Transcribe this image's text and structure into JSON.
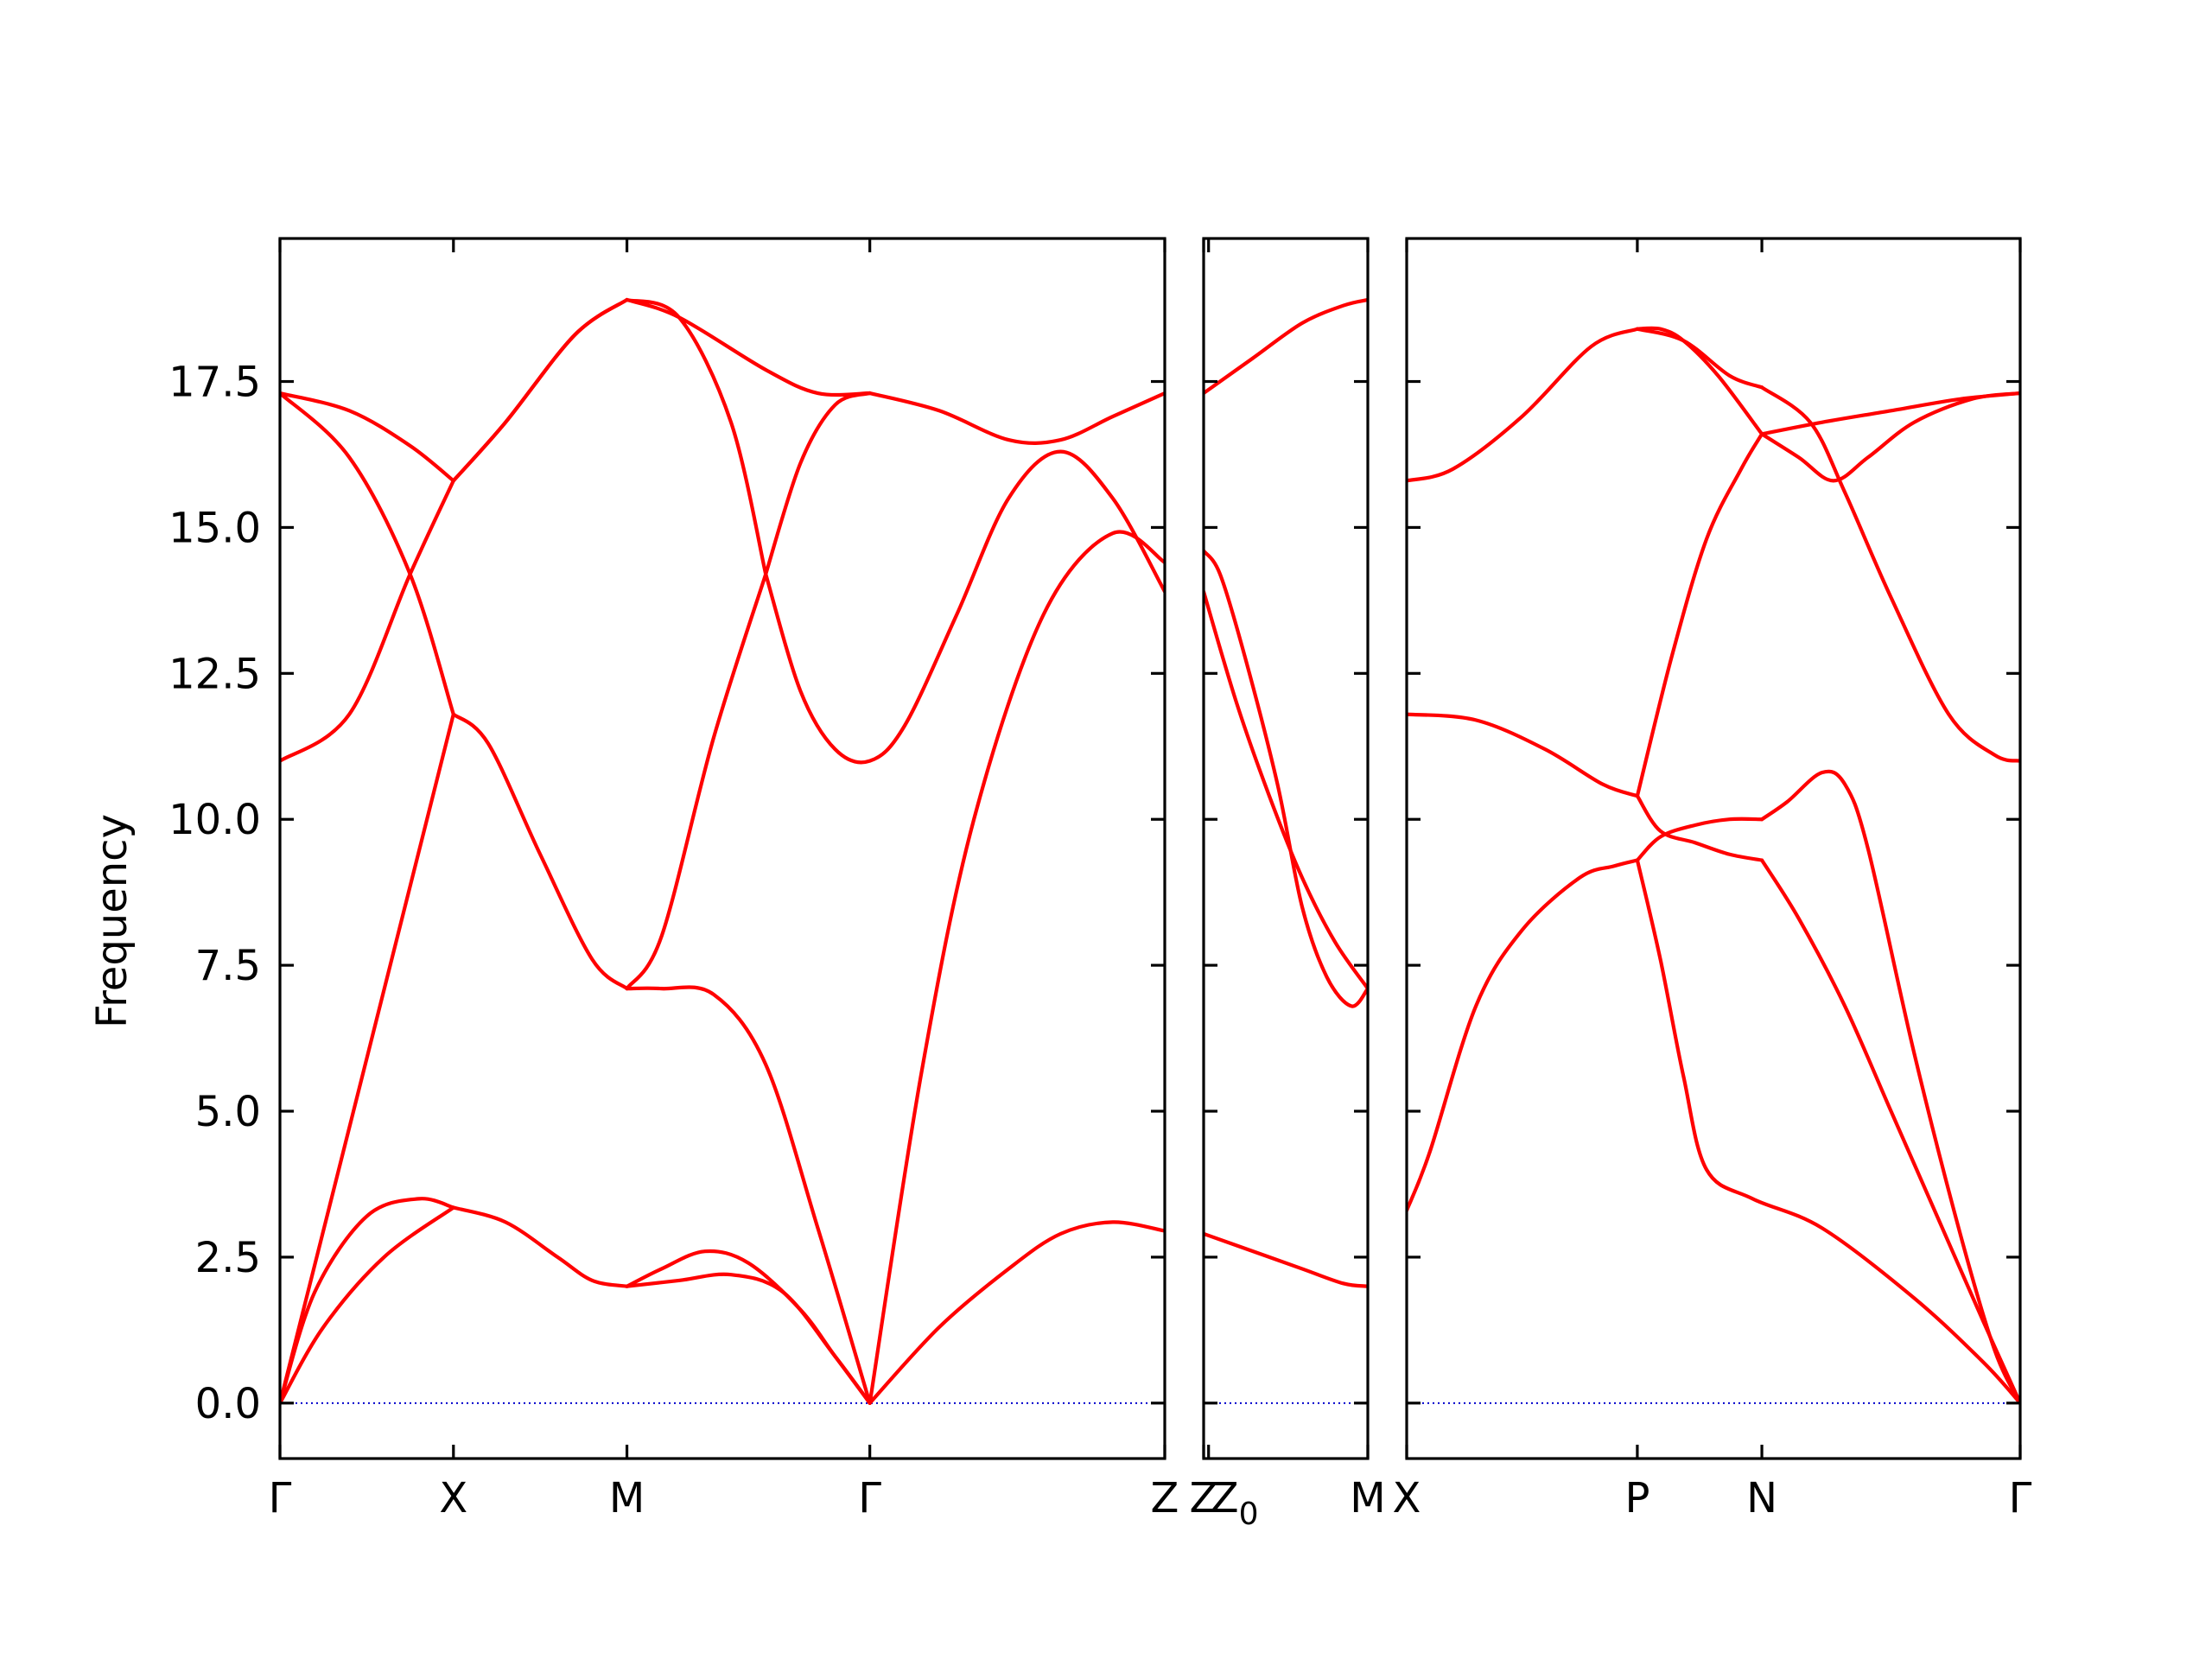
{
  "chart_data": {
    "type": "line",
    "ylabel": "Frequency",
    "ylim": [
      -0.95,
      19.95
    ],
    "yticks": [
      "0.0",
      "2.5",
      "5.0",
      "7.5",
      "10.0",
      "12.5",
      "15.0",
      "17.5"
    ],
    "yticks_values": [
      0,
      2.5,
      5,
      7.5,
      10,
      12.5,
      15,
      17.5
    ],
    "line_color": "#ff0000",
    "zero_line_color": "#0000cc",
    "grid": false,
    "panels": [
      {
        "xlim": [
          0,
          5.1
        ],
        "xticks": [
          {
            "label": "Γ",
            "x": 0
          },
          {
            "label": "X",
            "x": 1.0
          },
          {
            "label": "M",
            "x": 2.0
          },
          {
            "label": "Γ",
            "x": 3.4
          },
          {
            "label": "Z",
            "x": 5.1
          }
        ],
        "bands": [
          {
            "x": [
              0,
              0.4,
              0.75,
              1.0
            ],
            "y": [
              17.3,
              17.0,
              16.4,
              15.8
            ]
          },
          {
            "x": [
              1.0,
              1.3,
              1.7,
              2.0
            ],
            "y": [
              15.8,
              16.8,
              18.3,
              18.9
            ]
          },
          {
            "x": [
              2.0,
              2.3,
              2.8,
              3.1,
              3.4
            ],
            "y": [
              18.9,
              18.6,
              17.7,
              17.3,
              17.3
            ]
          },
          {
            "x": [
              3.4,
              3.8,
              4.2,
              4.5,
              4.8,
              5.1
            ],
            "y": [
              17.3,
              17.0,
              16.5,
              16.5,
              16.9,
              17.3
            ]
          },
          {
            "x": [
              0,
              0.4,
              0.75,
              1.0
            ],
            "y": [
              17.3,
              16.2,
              14.2,
              11.8
            ]
          },
          {
            "x": [
              1.0,
              1.2,
              1.5,
              1.8,
              2.0
            ],
            "y": [
              11.8,
              11.3,
              9.4,
              7.6,
              7.1
            ]
          },
          {
            "x": [
              2.0,
              2.2,
              2.5,
              2.8
            ],
            "y": [
              7.1,
              8.0,
              11.4,
              14.2
            ]
          },
          {
            "x": [
              2.8,
              3.0,
              3.2,
              3.4
            ],
            "y": [
              14.2,
              16.1,
              17.1,
              17.3
            ]
          },
          {
            "x": [
              0,
              0.4,
              0.75,
              1.0
            ],
            "y": [
              11.0,
              11.8,
              14.2,
              15.8
            ]
          },
          {
            "x": [
              1.0,
              1.3,
              1.7,
              2.0
            ],
            "y": [
              15.8,
              16.8,
              18.3,
              18.9
            ]
          },
          {
            "x": [
              2.0,
              2.3,
              2.6,
              2.8
            ],
            "y": [
              18.9,
              18.6,
              16.8,
              14.2
            ]
          },
          {
            "x": [
              2.8,
              3.0,
              3.2,
              3.4,
              3.6,
              3.9,
              4.2,
              4.5,
              4.8,
              5.1
            ],
            "y": [
              14.2,
              12.2,
              11.2,
              11.0,
              11.6,
              13.5,
              15.5,
              16.3,
              15.5,
              13.9
            ]
          },
          {
            "x": [
              0,
              1.0
            ],
            "y": [
              0,
              11.8
            ]
          },
          {
            "x": [
              2.0,
              2.2,
              2.5,
              2.8,
              3.1,
              3.4
            ],
            "y": [
              7.1,
              7.1,
              7.0,
              5.8,
              3.0,
              0
            ]
          },
          {
            "x": [
              3.4,
              3.7,
              4.0,
              4.4,
              4.8,
              5.1
            ],
            "y": [
              0,
              5.7,
              10.0,
              13.5,
              14.9,
              14.4
            ]
          },
          {
            "x": [
              0,
              0.2,
              0.5,
              0.8,
              1.0
            ],
            "y": [
              0,
              1.9,
              3.2,
              3.5,
              3.35
            ]
          },
          {
            "x": [
              0,
              0.25,
              0.6,
              1.0
            ],
            "y": [
              0,
              1.3,
              2.5,
              3.35
            ]
          },
          {
            "x": [
              1.0,
              1.3,
              1.6,
              1.8,
              2.0
            ],
            "y": [
              3.35,
              3.1,
              2.5,
              2.1,
              2.0
            ]
          },
          {
            "x": [
              2.0,
              2.2,
              2.45,
              2.7,
              3.0,
              3.2,
              3.4
            ],
            "y": [
              2.0,
              2.3,
              2.6,
              2.4,
              1.6,
              0.8,
              0
            ]
          },
          {
            "x": [
              2.0,
              2.3,
              2.6,
              2.9,
              3.2,
              3.4
            ],
            "y": [
              2.0,
              2.1,
              2.2,
              1.9,
              0.8,
              0
            ]
          },
          {
            "x": [
              3.4,
              3.8,
              4.2,
              4.5,
              4.8,
              5.1
            ],
            "y": [
              0,
              1.3,
              2.3,
              2.9,
              3.1,
              2.95
            ]
          }
        ]
      },
      {
        "xlim": [
          0,
          1.0
        ],
        "xticks": [
          {
            "label": "Z",
            "x": 0
          },
          {
            "label": "Z_0",
            "x": 0.03
          },
          {
            "label": "M",
            "x": 1.0
          }
        ],
        "bands": [
          {
            "x": [
              0,
              0.3,
              0.6,
              0.85,
              1.0
            ],
            "y": [
              17.3,
              17.9,
              18.5,
              18.8,
              18.9
            ]
          },
          {
            "x": [
              0,
              0.1,
              0.25,
              0.45,
              0.6,
              0.75,
              0.9,
              1.0
            ],
            "y": [
              14.6,
              14.2,
              12.8,
              10.6,
              8.5,
              7.3,
              6.8,
              7.1
            ]
          },
          {
            "x": [
              0,
              0.2,
              0.4,
              0.6,
              0.8,
              1.0
            ],
            "y": [
              13.9,
              12.0,
              10.4,
              9.0,
              7.9,
              7.1
            ]
          },
          {
            "x": [
              0,
              0.3,
              0.6,
              0.85,
              1.0
            ],
            "y": [
              2.9,
              2.6,
              2.3,
              2.05,
              2.0
            ]
          }
        ]
      },
      {
        "xlim": [
          0,
          2.66
        ],
        "xticks": [
          {
            "label": "X",
            "x": 0
          },
          {
            "label": "P",
            "x": 1.0
          },
          {
            "label": "N",
            "x": 1.54
          },
          {
            "label": "Γ",
            "x": 2.66
          }
        ],
        "bands": [
          {
            "x": [
              0,
              0.2,
              0.5,
              0.8,
              1.0
            ],
            "y": [
              15.8,
              16.0,
              16.9,
              18.1,
              18.4
            ]
          },
          {
            "x": [
              1.0,
              1.1,
              1.2,
              1.35,
              1.54
            ],
            "y": [
              18.4,
              18.4,
              18.2,
              17.6,
              16.6
            ]
          },
          {
            "x": [
              1.0,
              1.2,
              1.4,
              1.54
            ],
            "y": [
              18.4,
              18.2,
              17.6,
              17.4
            ]
          },
          {
            "x": [
              1.54,
              1.8,
              2.1,
              2.4,
              2.66
            ],
            "y": [
              16.6,
              16.8,
              17.0,
              17.2,
              17.3
            ]
          },
          {
            "x": [
              1.54,
              1.7,
              1.85,
              2.0,
              2.2,
              2.45,
              2.66
            ],
            "y": [
              16.6,
              16.2,
              15.8,
              16.2,
              16.8,
              17.2,
              17.3
            ]
          },
          {
            "x": [
              1.54,
              1.75,
              1.9,
              2.1,
              2.35,
              2.55,
              2.66
            ],
            "y": [
              17.4,
              16.8,
              15.6,
              13.8,
              11.8,
              11.1,
              11.0
            ]
          },
          {
            "x": [
              0,
              0.3,
              0.6,
              0.85,
              1.0
            ],
            "y": [
              11.8,
              11.7,
              11.2,
              10.6,
              10.4
            ]
          },
          {
            "x": [
              1.0,
              1.15,
              1.3,
              1.45,
              1.54
            ],
            "y": [
              10.4,
              12.8,
              14.8,
              16.0,
              16.6
            ]
          },
          {
            "x": [
              0,
              0.1,
              0.3,
              0.5,
              0.75,
              0.9,
              1.0
            ],
            "y": [
              3.3,
              4.3,
              6.8,
              8.1,
              9.0,
              9.2,
              9.3
            ]
          },
          {
            "x": [
              1.0,
              1.1,
              1.25,
              1.4,
              1.54
            ],
            "y": [
              9.3,
              9.7,
              9.9,
              10.0,
              10.0
            ]
          },
          {
            "x": [
              1.0,
              1.1,
              1.25,
              1.4,
              1.54
            ],
            "y": [
              10.4,
              9.8,
              9.6,
              9.4,
              9.3
            ]
          },
          {
            "x": [
              1.54,
              1.65,
              1.8,
              1.9,
              2.0,
              2.2,
              2.4,
              2.55,
              2.66
            ],
            "y": [
              10.0,
              10.3,
              10.8,
              10.6,
              9.5,
              6.0,
              2.9,
              0.9,
              0
            ]
          },
          {
            "x": [
              1.54,
              1.7,
              1.9,
              2.1,
              2.3,
              2.5,
              2.66
            ],
            "y": [
              9.3,
              8.3,
              6.8,
              5.0,
              3.2,
              1.4,
              0
            ]
          },
          {
            "x": [
              1.0,
              1.1,
              1.2,
              1.3,
              1.5,
              1.8,
              2.2,
              2.5,
              2.66
            ],
            "y": [
              9.3,
              7.6,
              5.6,
              4.0,
              3.5,
              3.0,
              1.8,
              0.7,
              0
            ]
          }
        ]
      }
    ]
  }
}
